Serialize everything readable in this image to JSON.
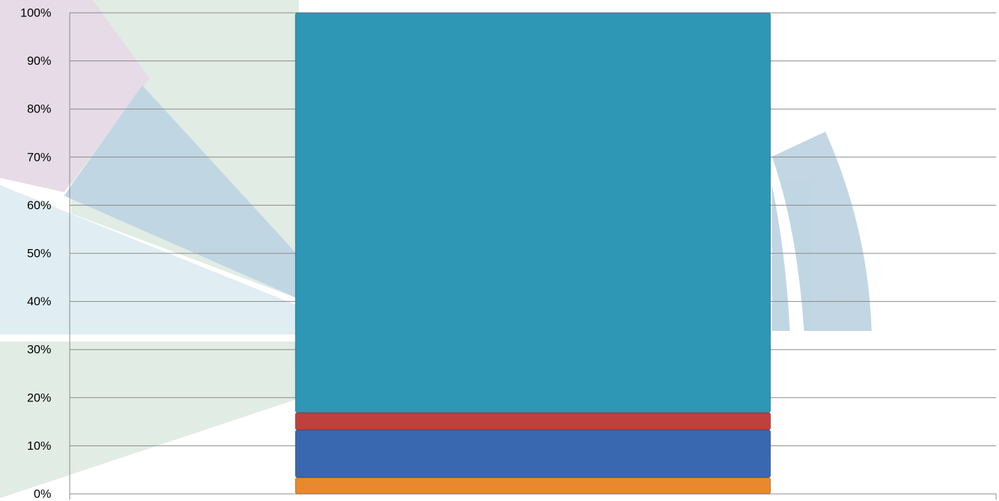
{
  "chart_data": {
    "type": "stacked-bar",
    "categories": [
      null
    ],
    "series": [
      {
        "color": "#e8892f",
        "values": [
          3.4
        ]
      },
      {
        "color": "#3a68b0",
        "values": [
          9.9
        ]
      },
      {
        "color": "#c0403d",
        "values": [
          3.6
        ]
      },
      {
        "color": "#2e97b5",
        "values": [
          83.1
        ]
      }
    ],
    "ylim": [
      0,
      100
    ],
    "yticks": [
      {
        "value": 0,
        "label": "0%"
      },
      {
        "value": 10,
        "label": "10%"
      },
      {
        "value": 20,
        "label": "20%"
      },
      {
        "value": 30,
        "label": "30%"
      },
      {
        "value": 40,
        "label": "40%"
      },
      {
        "value": 50,
        "label": "50%"
      },
      {
        "value": 60,
        "label": "60%"
      },
      {
        "value": 70,
        "label": "70%"
      },
      {
        "value": 80,
        "label": "80%"
      },
      {
        "value": 90,
        "label": "90%"
      },
      {
        "value": 100,
        "label": "100%"
      }
    ],
    "grid": true
  }
}
